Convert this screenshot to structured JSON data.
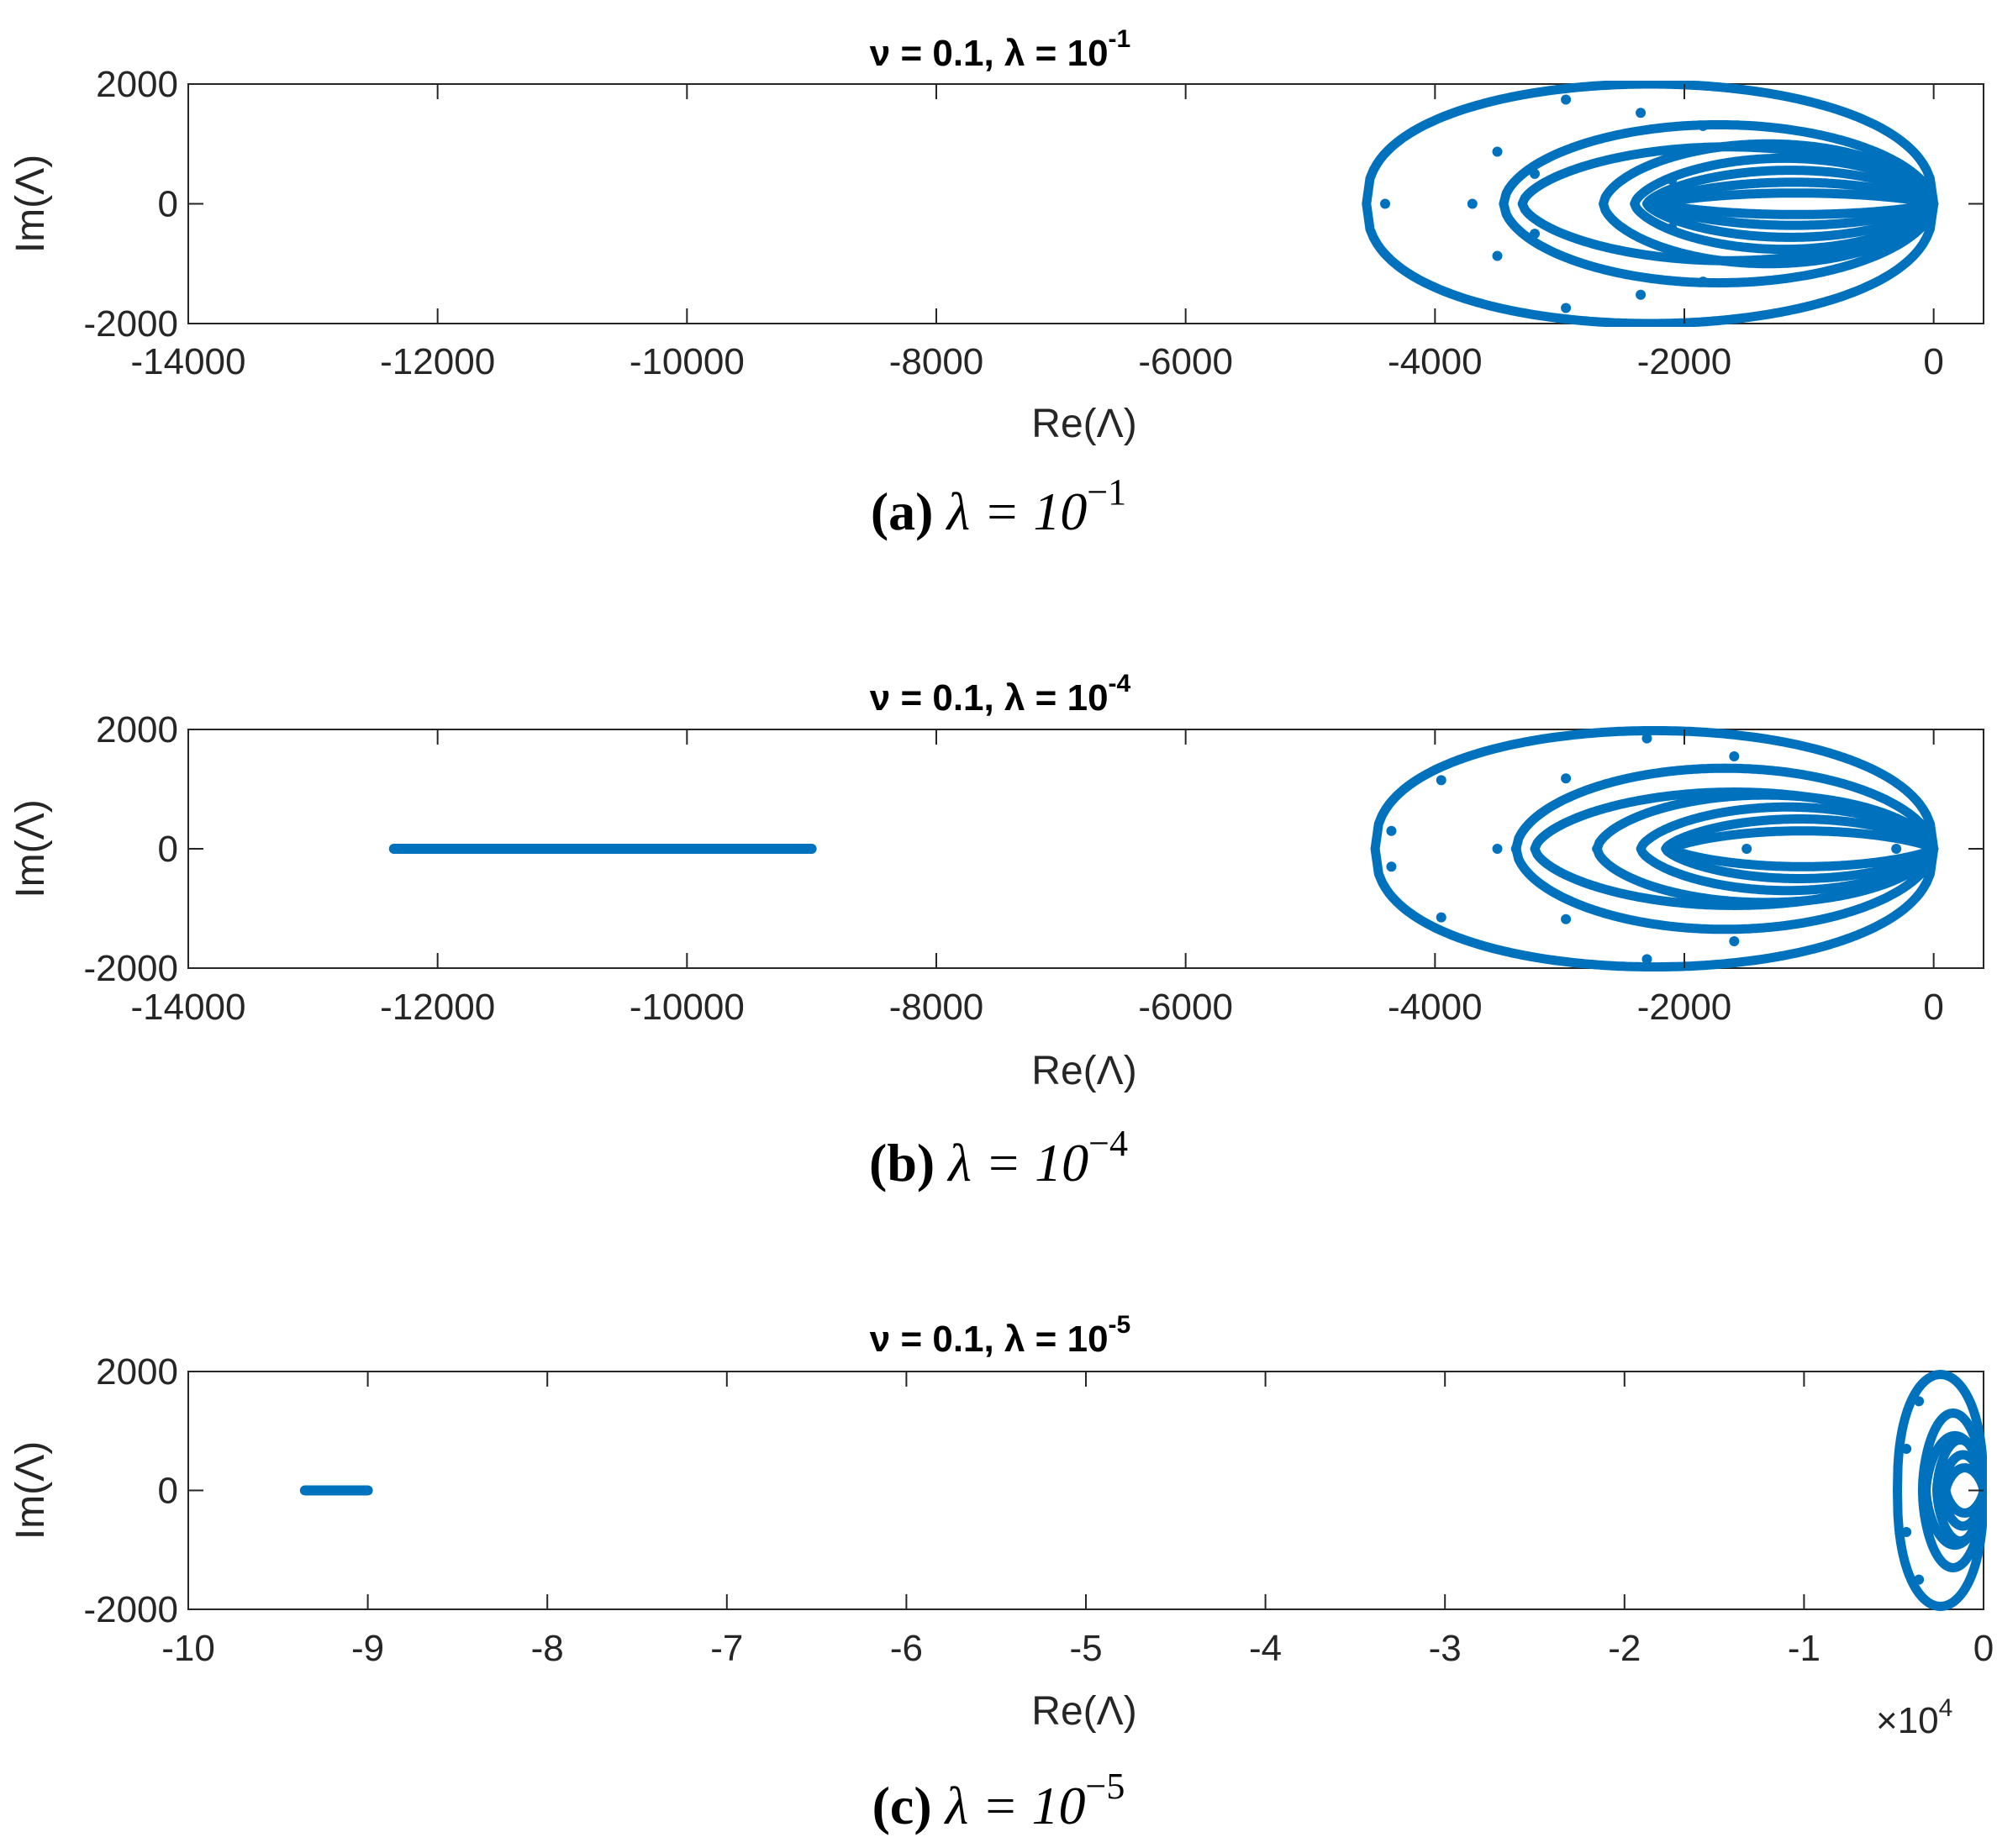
{
  "figure": {
    "panels": [
      {
        "title_prefix": "ν = 0.1,  λ = 10",
        "title_exponent": "-1",
        "caption_label": "(a)",
        "caption_math": "λ = 10",
        "caption_exponent": "−1"
      },
      {
        "title_prefix": "ν = 0.1,  λ = 10",
        "title_exponent": "-4",
        "caption_label": "(b)",
        "caption_math": "λ = 10",
        "caption_exponent": "−4"
      },
      {
        "title_prefix": "ν = 0.1,  λ = 10",
        "title_exponent": "-5",
        "caption_label": "(c)",
        "caption_math": "λ = 10",
        "caption_exponent": "−5"
      }
    ]
  },
  "colors": {
    "series": "#0072BD",
    "axis": "#262626"
  },
  "chart_data": [
    {
      "type": "scatter",
      "title": "ν = 0.1, λ = 10^-1",
      "xlabel": "Re(Λ)",
      "ylabel": "Im(Λ)",
      "xlim": [
        -14000,
        400
      ],
      "ylim": [
        -2000,
        2000
      ],
      "xticks": [
        -14000,
        -12000,
        -10000,
        -8000,
        -6000,
        -4000,
        -2000,
        0
      ],
      "xtick_labels": [
        "-14000",
        "-12000",
        "-10000",
        "-8000",
        "-6000",
        "-4000",
        "-2000",
        "0"
      ],
      "yticks": [
        -2000,
        0,
        2000
      ],
      "ytick_labels": [
        "-2000",
        "0",
        "2000"
      ],
      "x_multiplier": "",
      "grid": false,
      "loops": [
        {
          "xmin": -4550,
          "xmax": 0,
          "ymax": 2000,
          "shape": 0.42
        },
        {
          "xmin": -3450,
          "xmax": 0,
          "ymax": 1320,
          "shape": 0.55
        },
        {
          "xmin": -3300,
          "xmax": 0,
          "ymax": 950,
          "shape": 0.62
        },
        {
          "xmin": -2650,
          "xmax": 0,
          "ymax": 1000,
          "shape": 0.6
        },
        {
          "xmin": -2400,
          "xmax": 0,
          "ymax": 760,
          "shape": 0.65
        },
        {
          "xmin": -2300,
          "xmax": 0,
          "ymax": 560,
          "shape": 0.7
        },
        {
          "xmin": -2250,
          "xmax": 0,
          "ymax": 360,
          "shape": 0.75
        },
        {
          "xmin": -2200,
          "xmax": 0,
          "ymax": 180,
          "shape": 0.8
        }
      ],
      "points": [
        [
          -4400,
          0
        ],
        [
          -3700,
          0
        ],
        [
          -3500,
          870
        ],
        [
          -3500,
          -870
        ],
        [
          -2950,
          1740
        ],
        [
          -2950,
          -1740
        ],
        [
          -2350,
          1520
        ],
        [
          -2350,
          -1520
        ],
        [
          -1850,
          1300
        ],
        [
          -1850,
          -1300
        ],
        [
          -3200,
          500
        ],
        [
          -3200,
          -500
        ],
        [
          -2100,
          400
        ],
        [
          -2100,
          -400
        ]
      ],
      "segments": []
    },
    {
      "type": "scatter",
      "title": "ν = 0.1, λ = 10^-4",
      "xlabel": "Re(Λ)",
      "ylabel": "Im(Λ)",
      "xlim": [
        -14000,
        400
      ],
      "ylim": [
        -2000,
        2000
      ],
      "xticks": [
        -14000,
        -12000,
        -10000,
        -8000,
        -6000,
        -4000,
        -2000,
        0
      ],
      "xtick_labels": [
        "-14000",
        "-12000",
        "-10000",
        "-8000",
        "-6000",
        "-4000",
        "-2000",
        "0"
      ],
      "yticks": [
        -2000,
        0,
        2000
      ],
      "ytick_labels": [
        "-2000",
        "0",
        "2000"
      ],
      "x_multiplier": "",
      "grid": false,
      "loops": [
        {
          "xmin": -4480,
          "xmax": 0,
          "ymax": 1980,
          "shape": 0.42
        },
        {
          "xmin": -3350,
          "xmax": 0,
          "ymax": 1350,
          "shape": 0.55
        },
        {
          "xmin": -3200,
          "xmax": 0,
          "ymax": 950,
          "shape": 0.62
        },
        {
          "xmin": -2700,
          "xmax": 0,
          "ymax": 900,
          "shape": 0.6
        },
        {
          "xmin": -2350,
          "xmax": 0,
          "ymax": 700,
          "shape": 0.65
        },
        {
          "xmin": -2150,
          "xmax": 0,
          "ymax": 500,
          "shape": 0.7
        },
        {
          "xmin": -2100,
          "xmax": 0,
          "ymax": 300,
          "shape": 0.75
        }
      ],
      "points": [
        [
          -4350,
          300
        ],
        [
          -4350,
          -300
        ],
        [
          -3950,
          1150
        ],
        [
          -3950,
          -1150
        ],
        [
          -3500,
          0
        ],
        [
          -3350,
          0
        ],
        [
          -2950,
          1180
        ],
        [
          -2950,
          -1180
        ],
        [
          -2300,
          1850
        ],
        [
          -2300,
          -1850
        ],
        [
          -1600,
          1550
        ],
        [
          -1600,
          -1550
        ],
        [
          -1500,
          0
        ],
        [
          -300,
          0
        ],
        [
          -2700,
          0
        ]
      ],
      "segments": [
        {
          "x0": -12350,
          "x1": -9000,
          "y": 0
        }
      ]
    },
    {
      "type": "scatter",
      "title": "ν = 0.1, λ = 10^-5",
      "xlabel": "Re(Λ)",
      "ylabel": "Im(Λ)",
      "xlim": [
        -100000,
        0
      ],
      "ylim": [
        -2000,
        2000
      ],
      "xticks": [
        -100000,
        -90000,
        -80000,
        -70000,
        -60000,
        -50000,
        -40000,
        -30000,
        -20000,
        -10000,
        0
      ],
      "xtick_labels": [
        "-10",
        "-9",
        "-8",
        "-7",
        "-6",
        "-5",
        "-4",
        "-3",
        "-2",
        "-1",
        "0"
      ],
      "yticks": [
        -2000,
        0,
        2000
      ],
      "ytick_labels": [
        "-2000",
        "0",
        "2000"
      ],
      "x_multiplier": "×10",
      "x_multiplier_exponent": "4",
      "grid": false,
      "loops": [
        {
          "xmin": -4800,
          "xmax": 0,
          "ymax": 1950,
          "shape": 0.42
        },
        {
          "xmin": -3400,
          "xmax": 0,
          "ymax": 1300,
          "shape": 0.55
        },
        {
          "xmin": -3200,
          "xmax": 0,
          "ymax": 920,
          "shape": 0.62
        },
        {
          "xmin": -2600,
          "xmax": 0,
          "ymax": 850,
          "shape": 0.6
        },
        {
          "xmin": -2300,
          "xmax": 0,
          "ymax": 600,
          "shape": 0.66
        },
        {
          "xmin": -2100,
          "xmax": 0,
          "ymax": 380,
          "shape": 0.72
        }
      ],
      "points": [
        [
          -4300,
          700
        ],
        [
          -4300,
          -700
        ],
        [
          -3600,
          1500
        ],
        [
          -3600,
          -1500
        ]
      ],
      "segments": [
        {
          "x0": -93500,
          "x1": -90000,
          "y": 0
        }
      ]
    }
  ]
}
